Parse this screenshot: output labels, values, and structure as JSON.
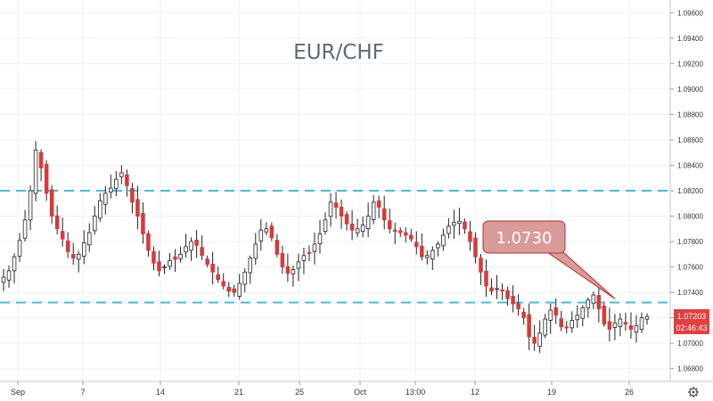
{
  "chart_data": {
    "type": "candlestick",
    "title": "EUR/CHF",
    "ylim": [
      1.067,
      1.097
    ],
    "y_ticks": [
      "1.06800",
      "1.07000",
      "1.07200",
      "1.07400",
      "1.07600",
      "1.07800",
      "1.08000",
      "1.08200",
      "1.08400",
      "1.08600",
      "1.08800",
      "1.09000",
      "1.09200",
      "1.09400",
      "1.09600"
    ],
    "x_ticks": [
      "Sep",
      "7",
      "14",
      "21",
      "25",
      "Oct",
      "13:00",
      "12",
      "19",
      "26"
    ],
    "horizontal_lines": [
      1.082,
      1.0732
    ],
    "annotation": {
      "label": "1.0730",
      "points_to": 1.0735
    },
    "current_price": "1.07203",
    "countdown": "02:46:43",
    "colors": {
      "up": "#ffffff",
      "down": "#d73a3a",
      "wick": "#222222",
      "level_line": "#4db8d8",
      "callout_fill": "#d99a9a",
      "callout_stroke": "#b03030",
      "badge": "#e04040"
    },
    "close_series": [
      1.0752,
      1.0757,
      1.0768,
      1.0781,
      1.0797,
      1.082,
      1.0852,
      1.0838,
      1.0818,
      1.08,
      1.079,
      1.0782,
      1.0772,
      1.0767,
      1.077,
      1.0779,
      1.0787,
      1.08,
      1.0812,
      1.0818,
      1.0822,
      1.0829,
      1.0834,
      1.0824,
      1.0811,
      1.08,
      1.0786,
      1.0773,
      1.0763,
      1.0757,
      1.076,
      1.0765,
      1.0766,
      1.077,
      1.0776,
      1.078,
      1.0777,
      1.0769,
      1.0762,
      1.0756,
      1.075,
      1.0745,
      1.0741,
      1.074,
      1.0747,
      1.0756,
      1.0767,
      1.0778,
      1.0789,
      1.079,
      1.0783,
      1.077,
      1.076,
      1.0755,
      1.0758,
      1.0764,
      1.0769,
      1.0771,
      1.0778,
      1.0786,
      1.0797,
      1.0811,
      1.0807,
      1.08,
      1.0794,
      1.0789,
      1.079,
      1.0793,
      1.08,
      1.0811,
      1.0807,
      1.0797,
      1.079,
      1.0788,
      1.0787,
      1.0785,
      1.0782,
      1.0776,
      1.0768,
      1.0769,
      1.0773,
      1.0778,
      1.0785,
      1.0792,
      1.0795,
      1.0796,
      1.079,
      1.078,
      1.0768,
      1.0756,
      1.0745,
      1.0741,
      1.0743,
      1.0741,
      1.0735,
      1.0731,
      1.0727,
      1.072,
      1.0705,
      1.07,
      1.0708,
      1.0719,
      1.0726,
      1.0722,
      1.0713,
      1.0712,
      1.0718,
      1.0722,
      1.0728,
      1.0734,
      1.0738,
      1.0727,
      1.0715,
      1.0711,
      1.0716,
      1.0719,
      1.0715,
      1.0711,
      1.0714,
      1.072,
      1.0721
    ]
  }
}
